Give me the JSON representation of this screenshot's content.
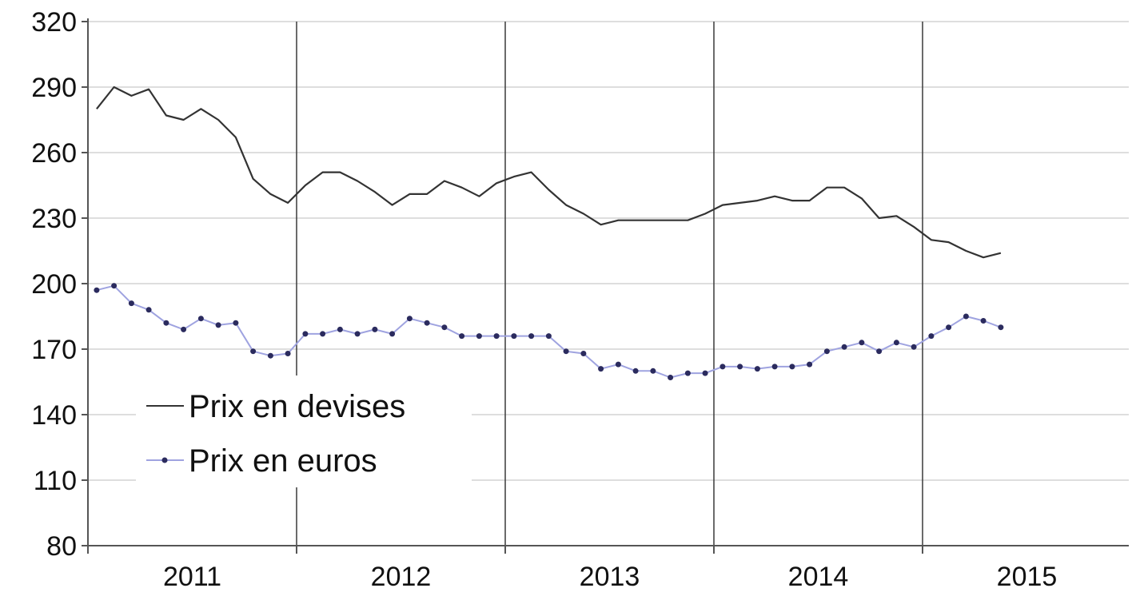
{
  "chart_data": {
    "type": "line",
    "ylim": [
      80,
      320
    ],
    "yticks": [
      80,
      110,
      140,
      170,
      200,
      230,
      260,
      290,
      320
    ],
    "x_start": "2011-01",
    "x_end": "2015-12",
    "year_labels": [
      "2011",
      "2012",
      "2013",
      "2014",
      "2015"
    ],
    "grid": {
      "horizontal": true,
      "vertical_year_dividers": true
    },
    "legend_placement": "lower-left",
    "series": [
      {
        "name": "Prix en devises",
        "color": "#333333",
        "marker": "none",
        "x": [
          "2011-01",
          "2011-02",
          "2011-03",
          "2011-04",
          "2011-05",
          "2011-06",
          "2011-07",
          "2011-08",
          "2011-09",
          "2011-10",
          "2011-11",
          "2011-12",
          "2012-01",
          "2012-02",
          "2012-03",
          "2012-04",
          "2012-05",
          "2012-06",
          "2012-07",
          "2012-08",
          "2012-09",
          "2012-10",
          "2012-11",
          "2012-12",
          "2013-01",
          "2013-02",
          "2013-03",
          "2013-04",
          "2013-05",
          "2013-06",
          "2013-07",
          "2013-08",
          "2013-09",
          "2013-10",
          "2013-11",
          "2013-12",
          "2014-01",
          "2014-02",
          "2014-03",
          "2014-04",
          "2014-05",
          "2014-06",
          "2014-07",
          "2014-08",
          "2014-09",
          "2014-10",
          "2014-11",
          "2014-12",
          "2015-01",
          "2015-02",
          "2015-03",
          "2015-04",
          "2015-05",
          "2015-06",
          "2015-07",
          "2015-08",
          "2015-09",
          "2015-10",
          "2015-11"
        ],
        "values": [
          280,
          290,
          286,
          289,
          277,
          275,
          280,
          275,
          267,
          248,
          241,
          237,
          245,
          251,
          251,
          247,
          242,
          236,
          241,
          241,
          247,
          244,
          240,
          246,
          249,
          251,
          243,
          236,
          232,
          227,
          229,
          229,
          229,
          229,
          229,
          232,
          236,
          237,
          238,
          240,
          238,
          238,
          244,
          244,
          239,
          230,
          231,
          226,
          220,
          219,
          215,
          212,
          214,
          null,
          null,
          null,
          null,
          null,
          null
        ]
      },
      {
        "name": "Prix en euros",
        "color": "#2b2b5e",
        "line_color": "#9fa3e0",
        "marker": "dot",
        "x": [
          "2011-01",
          "2011-02",
          "2011-03",
          "2011-04",
          "2011-05",
          "2011-06",
          "2011-07",
          "2011-08",
          "2011-09",
          "2011-10",
          "2011-11",
          "2011-12",
          "2012-01",
          "2012-02",
          "2012-03",
          "2012-04",
          "2012-05",
          "2012-06",
          "2012-07",
          "2012-08",
          "2012-09",
          "2012-10",
          "2012-11",
          "2012-12",
          "2013-01",
          "2013-02",
          "2013-03",
          "2013-04",
          "2013-05",
          "2013-06",
          "2013-07",
          "2013-08",
          "2013-09",
          "2013-10",
          "2013-11",
          "2013-12",
          "2014-01",
          "2014-02",
          "2014-03",
          "2014-04",
          "2014-05",
          "2014-06",
          "2014-07",
          "2014-08",
          "2014-09",
          "2014-10",
          "2014-11",
          "2014-12",
          "2015-01",
          "2015-02",
          "2015-03",
          "2015-04",
          "2015-05"
        ],
        "values": [
          197,
          199,
          191,
          188,
          182,
          179,
          184,
          181,
          182,
          169,
          167,
          168,
          177,
          177,
          179,
          177,
          179,
          177,
          184,
          182,
          180,
          176,
          176,
          176,
          176,
          176,
          176,
          169,
          168,
          161,
          163,
          160,
          160,
          157,
          159,
          159,
          162,
          162,
          161,
          162,
          162,
          163,
          169,
          171,
          173,
          169,
          173,
          171,
          176,
          180,
          185,
          183,
          180
        ]
      }
    ]
  }
}
